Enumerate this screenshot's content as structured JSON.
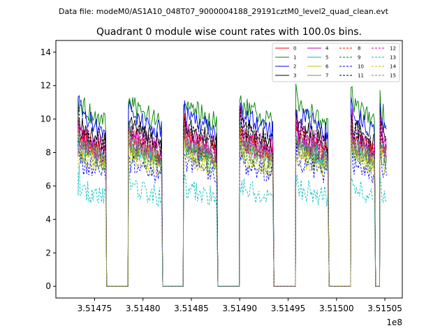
{
  "chart_data": {
    "type": "line",
    "suptitle": "Data file: modeM0/AS1A10_048T07_9000004188_29191cztM0_level2_quad_clean.evt",
    "title": "Quadrant 0 module wise count rates with 100.0s bins.",
    "xlabel": "",
    "ylabel": "",
    "x_offset_label": "1e8",
    "xlim": [
      3.51471,
      3.515068
    ],
    "ylim": [
      -0.7,
      14.7
    ],
    "x_ticks": [
      3.51475,
      3.5148,
      3.51485,
      3.5149,
      3.51495,
      3.515,
      3.51505
    ],
    "x_tick_labels": [
      "3.51475",
      "3.51480",
      "3.51485",
      "3.51490",
      "3.51495",
      "3.51500",
      "3.51505"
    ],
    "y_ticks": [
      0,
      2,
      4,
      6,
      8,
      10,
      12,
      14
    ],
    "y_tick_labels": [
      "0",
      "2",
      "4",
      "6",
      "8",
      "10",
      "12",
      "14"
    ],
    "legend_location": "top-right",
    "on_segments": [
      [
        3.514733,
        3.514762
      ],
      [
        3.514785,
        3.51482
      ],
      [
        3.514842,
        3.514877
      ],
      [
        3.5149,
        3.514935
      ],
      [
        3.514958,
        3.514992
      ],
      [
        3.515015,
        3.51504
      ],
      [
        3.515045,
        3.515052
      ]
    ],
    "series": [
      {
        "name": "0",
        "color": "#ff0000",
        "dashed": false,
        "level": 8.2
      },
      {
        "name": "1",
        "color": "#008000",
        "dashed": false,
        "level": 10.1
      },
      {
        "name": "2",
        "color": "#0000ff",
        "dashed": false,
        "level": 9.6
      },
      {
        "name": "3",
        "color": "#000000",
        "dashed": false,
        "level": 8.9
      },
      {
        "name": "4",
        "color": "#bf00bf",
        "dashed": false,
        "level": 8.6
      },
      {
        "name": "5",
        "color": "#00bfbf",
        "dashed": false,
        "level": 7.9
      },
      {
        "name": "6",
        "color": "#bfbf00",
        "dashed": false,
        "level": 7.7
      },
      {
        "name": "7",
        "color": "#808080",
        "dashed": false,
        "level": 8.0
      },
      {
        "name": "8",
        "color": "#ff0000",
        "dashed": true,
        "level": 8.3
      },
      {
        "name": "9",
        "color": "#008000",
        "dashed": true,
        "level": 7.5
      },
      {
        "name": "10",
        "color": "#0000ff",
        "dashed": true,
        "level": 6.9
      },
      {
        "name": "11",
        "color": "#000000",
        "dashed": true,
        "level": 8.7
      },
      {
        "name": "12",
        "color": "#bf00bf",
        "dashed": true,
        "level": 8.1
      },
      {
        "name": "13",
        "color": "#00bfbf",
        "dashed": true,
        "level": 5.5
      },
      {
        "name": "14",
        "color": "#bfbf00",
        "dashed": true,
        "level": 7.3
      },
      {
        "name": "15",
        "color": "#808080",
        "dashed": true,
        "level": 7.8
      }
    ]
  }
}
